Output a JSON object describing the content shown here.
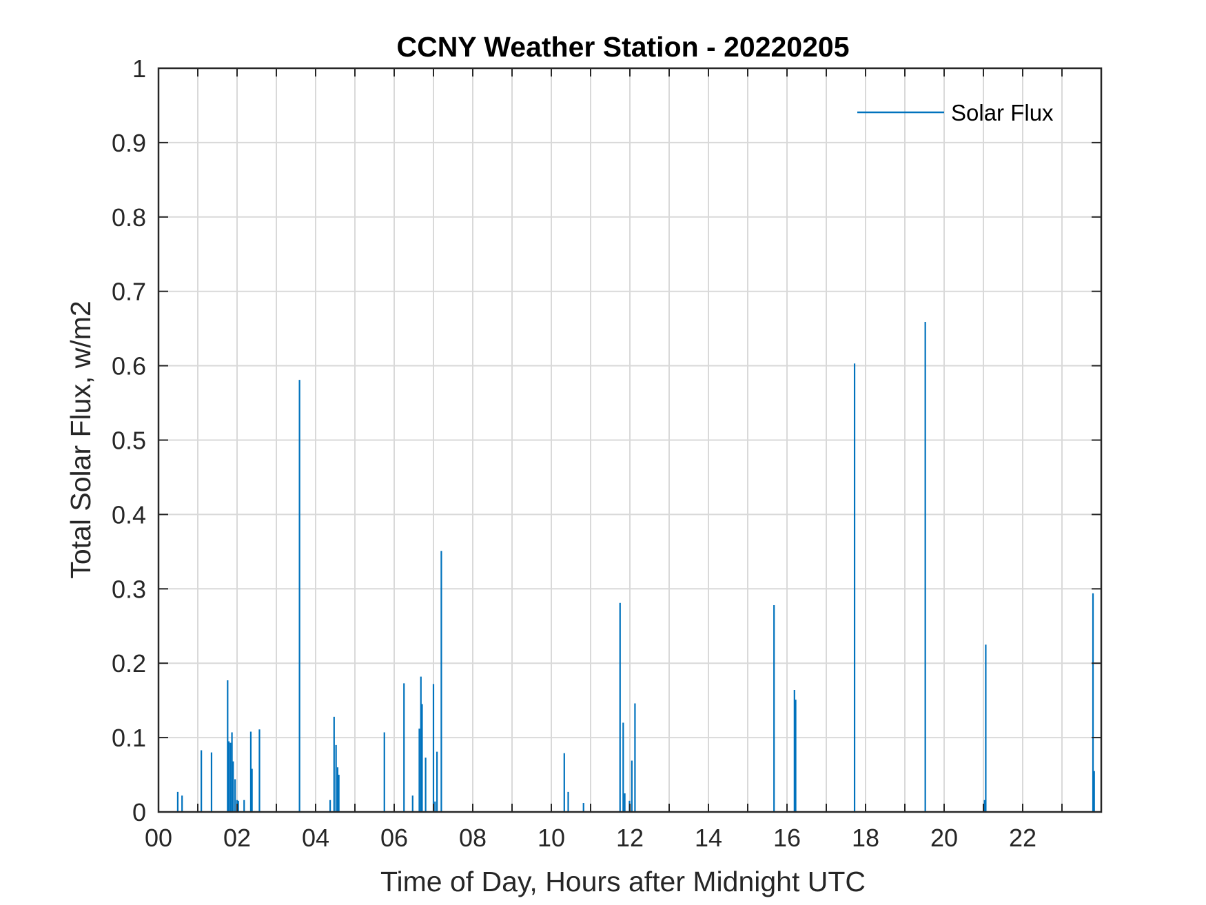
{
  "chart_data": {
    "type": "bar",
    "title": "CCNY Weather Station - 20220205",
    "xlabel": "Time of Day, Hours after Midnight UTC",
    "ylabel": "Total Solar Flux, w/m2",
    "xlim": [
      0,
      24
    ],
    "ylim": [
      0,
      1
    ],
    "xticks": [
      0,
      2,
      4,
      6,
      8,
      10,
      12,
      14,
      16,
      18,
      20,
      22
    ],
    "xtick_labels": [
      "00",
      "02",
      "04",
      "06",
      "08",
      "10",
      "12",
      "14",
      "16",
      "18",
      "20",
      "22"
    ],
    "yticks": [
      0,
      0.1,
      0.2,
      0.3,
      0.4,
      0.5,
      0.6,
      0.7,
      0.8,
      0.9,
      1
    ],
    "ytick_labels": [
      "0",
      "0.1",
      "0.2",
      "0.3",
      "0.4",
      "0.5",
      "0.6",
      "0.7",
      "0.8",
      "0.9",
      "1"
    ],
    "grid": true,
    "legend_position": "top-right",
    "series": [
      {
        "name": "Solar Flux",
        "color": "#0072BD",
        "x": [
          0.49,
          0.6,
          1.09,
          1.35,
          1.76,
          1.79,
          1.83,
          1.87,
          1.9,
          1.95,
          2.0,
          2.03,
          2.18,
          2.35,
          2.38,
          2.57,
          3.59,
          4.37,
          4.47,
          4.52,
          4.56,
          4.59,
          5.75,
          6.25,
          6.47,
          6.64,
          6.68,
          6.71,
          6.8,
          7.0,
          7.04,
          7.09,
          7.2,
          10.33,
          10.43,
          10.82,
          11.75,
          11.83,
          11.87,
          11.99,
          12.05,
          12.13,
          15.67,
          16.19,
          16.22,
          17.72,
          19.52,
          21.03,
          21.06,
          23.79,
          23.82
        ],
        "y": [
          0.027,
          0.022,
          0.083,
          0.08,
          0.177,
          0.095,
          0.093,
          0.107,
          0.068,
          0.044,
          0.016,
          0.015,
          0.016,
          0.108,
          0.058,
          0.111,
          0.581,
          0.016,
          0.128,
          0.09,
          0.06,
          0.05,
          0.107,
          0.173,
          0.022,
          0.112,
          0.182,
          0.145,
          0.073,
          0.172,
          0.014,
          0.081,
          0.351,
          0.079,
          0.027,
          0.012,
          0.281,
          0.12,
          0.025,
          0.015,
          0.069,
          0.146,
          0.278,
          0.164,
          0.151,
          0.603,
          0.659,
          0.016,
          0.225,
          0.294,
          0.055
        ]
      }
    ]
  }
}
